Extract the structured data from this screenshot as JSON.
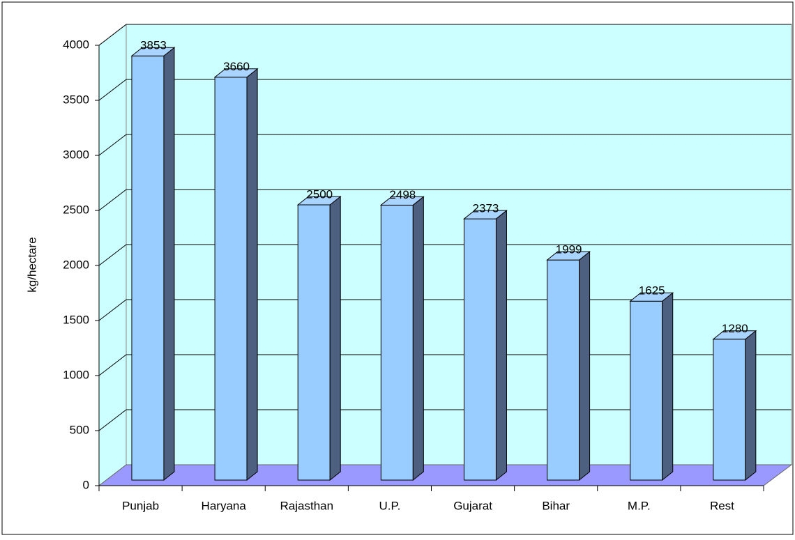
{
  "chart_data": {
    "type": "bar3d",
    "y_label": "kg/hectare",
    "categories": [
      "Punjab",
      "Haryana",
      "Rajasthan",
      "U.P.",
      "Gujarat",
      "Bihar",
      "M.P.",
      "Rest"
    ],
    "values": [
      3853,
      3660,
      2500,
      2498,
      2373,
      1999,
      1625,
      1280
    ],
    "color": "#99ccff",
    "ylim": [
      0,
      4000
    ],
    "yticks": [
      0,
      500,
      1000,
      1500,
      2000,
      2500,
      3000,
      3500,
      4000
    ],
    "grid": true
  }
}
